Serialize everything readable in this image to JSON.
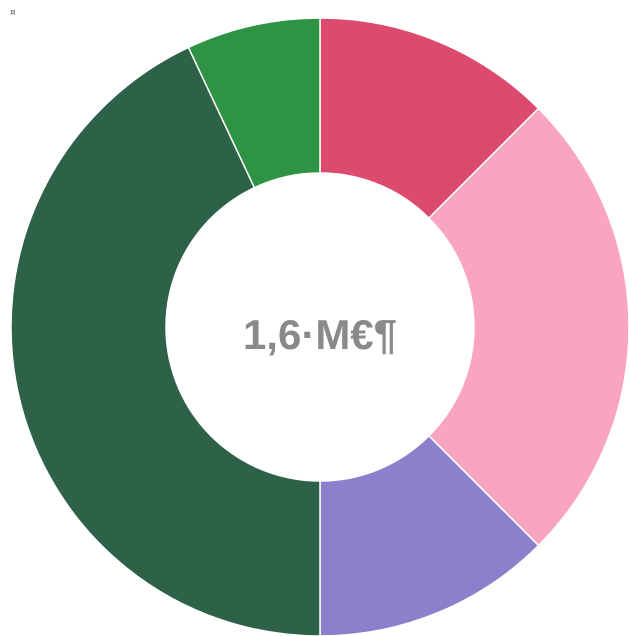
{
  "corner_mark": "¤",
  "chart_data": {
    "type": "pie",
    "variant": "donut",
    "title": "",
    "center_label": "1,6·M€¶",
    "categories": [
      "",
      "",
      "",
      "",
      ""
    ],
    "values": [
      12.5,
      25.0,
      12.5,
      43.0,
      7.0
    ],
    "colors": [
      "#dc4a6e",
      "#f9a4c2",
      "#8a80cc",
      "#2e6248",
      "#2f9344"
    ],
    "start_angle_deg": 0,
    "direction": "clockwise",
    "legend": "none"
  }
}
